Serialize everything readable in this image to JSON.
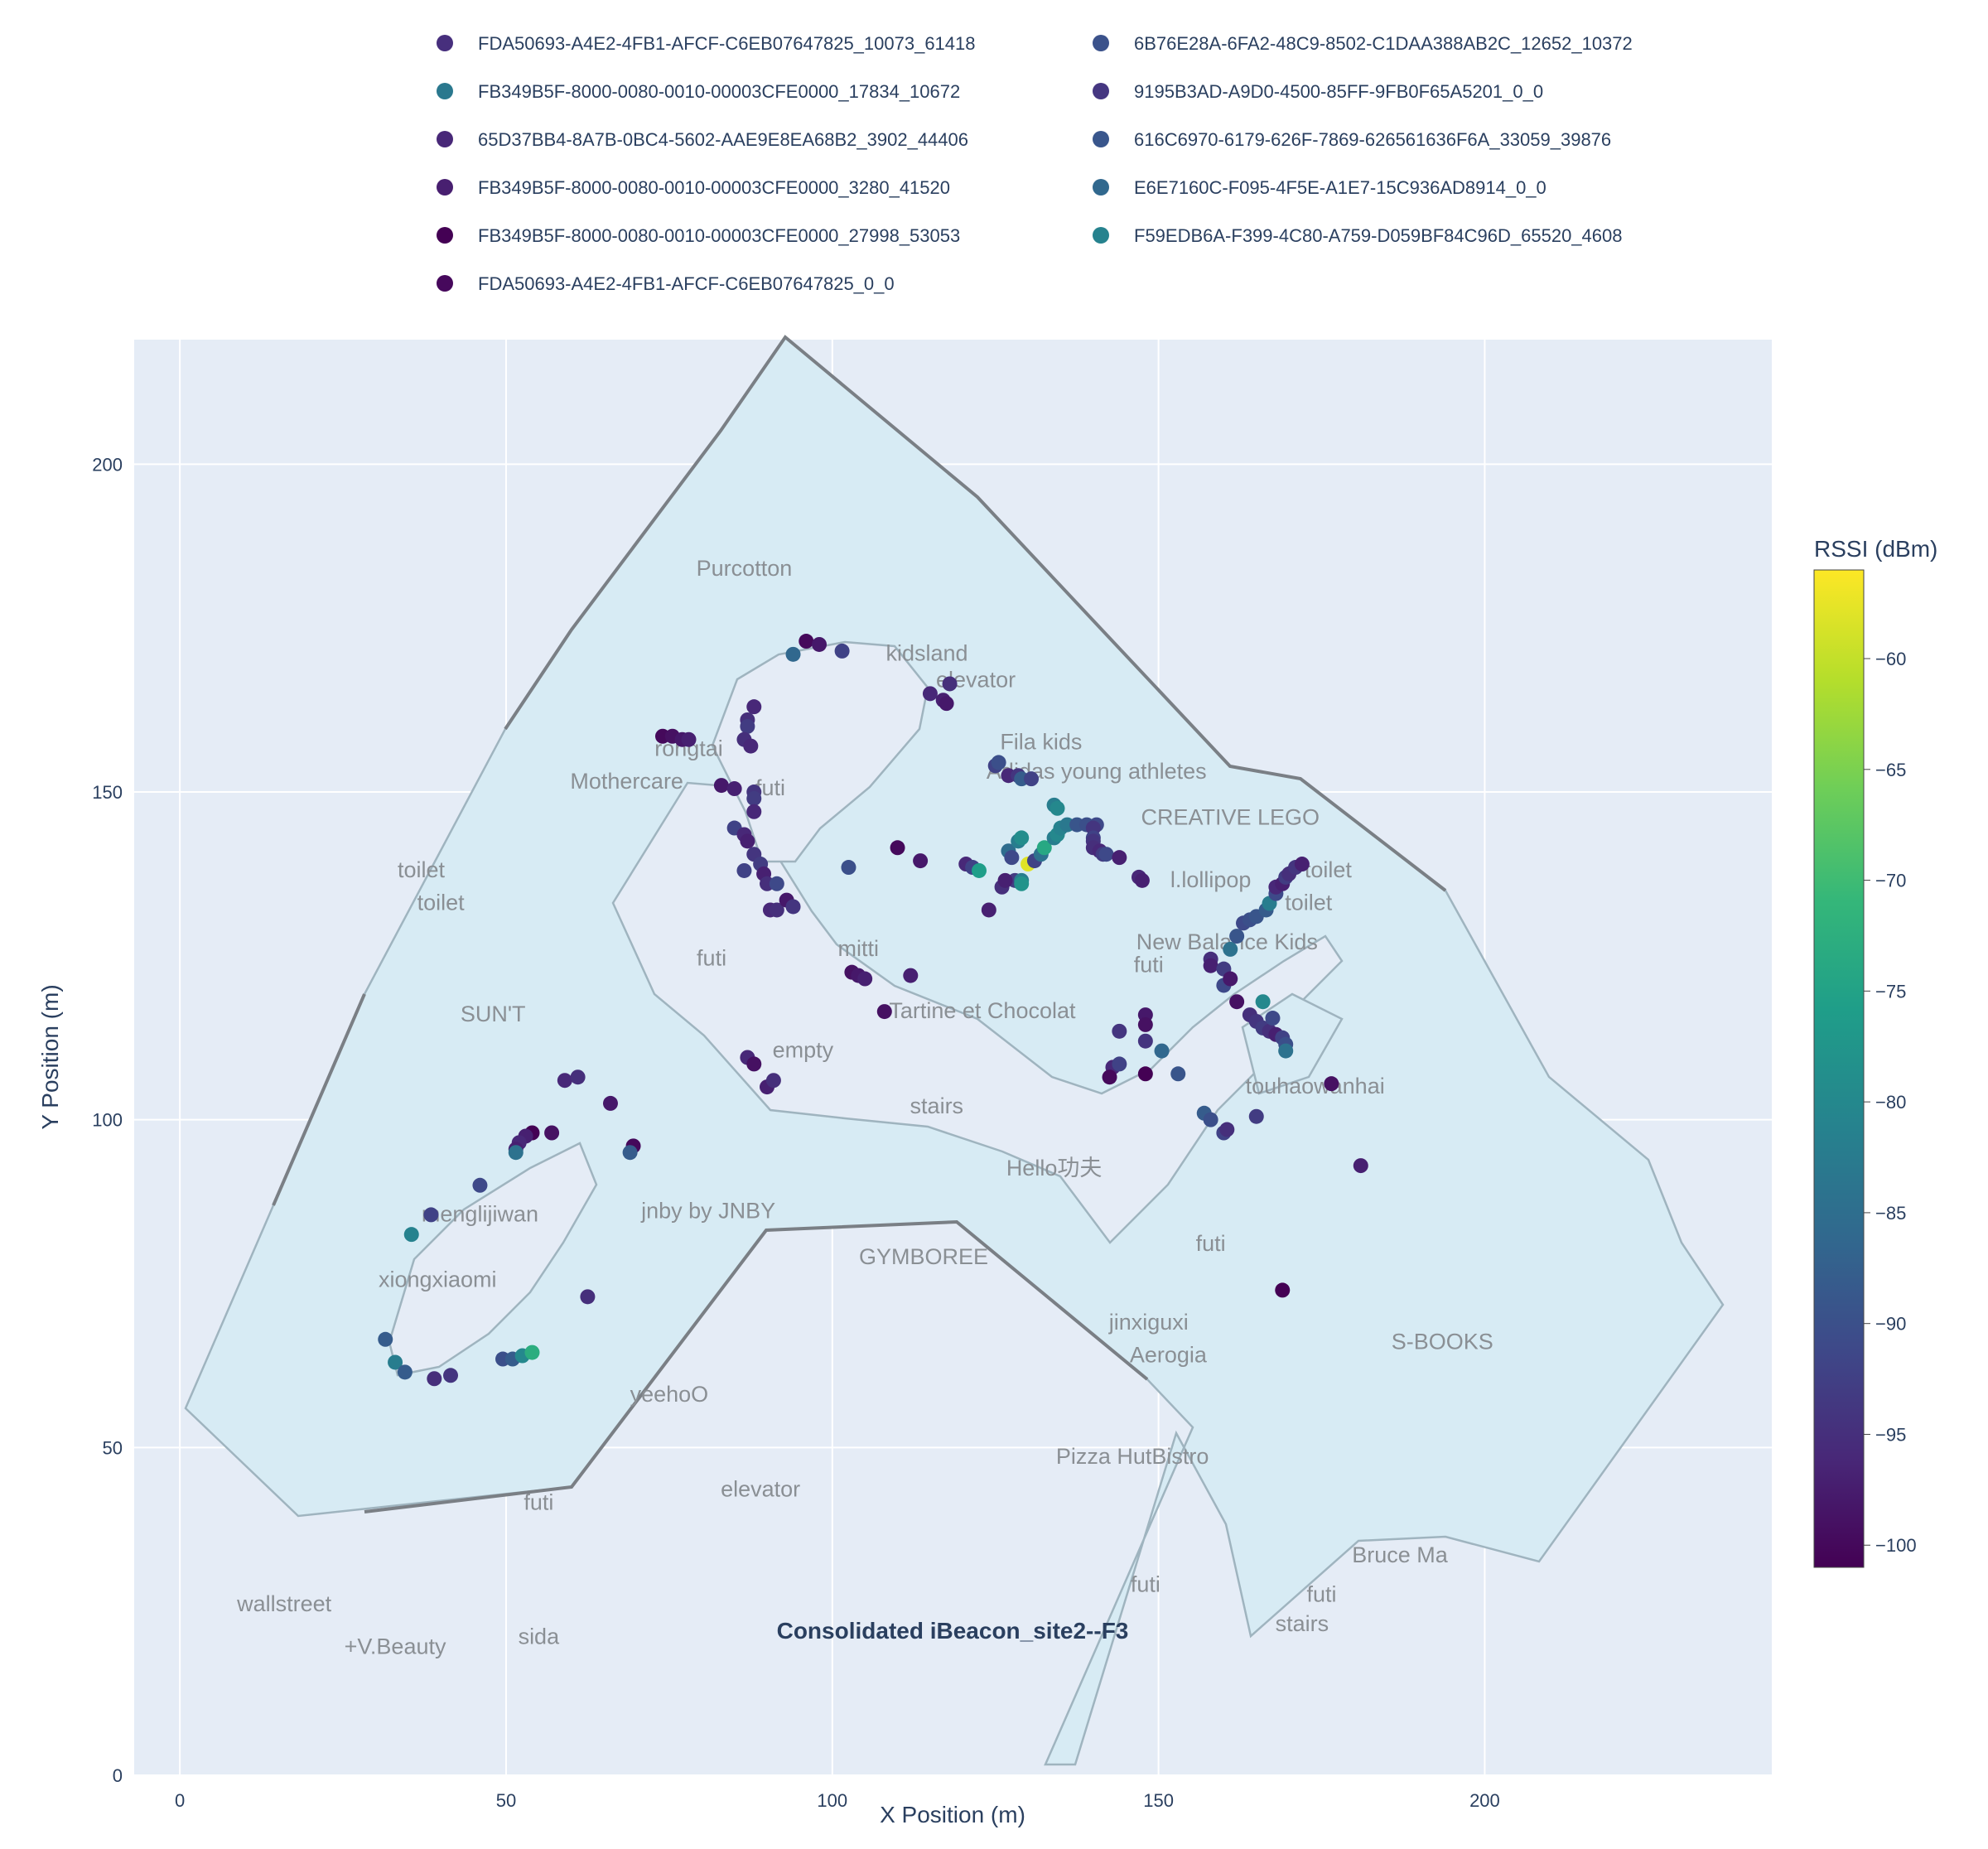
{
  "chart_data": {
    "type": "scatter",
    "xlabel": "X Position (m)",
    "ylabel": "Y Position (m)",
    "xlim": [
      -7,
      244
    ],
    "ylim": [
      0,
      219
    ],
    "xticks": [
      0,
      50,
      100,
      150,
      200
    ],
    "yticks": [
      0,
      50,
      100,
      150,
      200
    ],
    "grid": true,
    "legend_position": "top",
    "colorbar": {
      "title": "RSSI (dBm)",
      "range": [
        -101,
        -56
      ],
      "ticks": [
        -100,
        -95,
        -90,
        -85,
        -80,
        -75,
        -70,
        -65,
        -60
      ],
      "colorscale": "Viridis"
    },
    "series": [
      {
        "name": "FDA50693-A4E2-4FB1-AFCF-C6EB07647825_10073_61418",
        "color": "#472f7d"
      },
      {
        "name": "6B76E28A-6FA2-48C9-8502-C1DAA388AB2C_12652_10372",
        "color": "#3b528b"
      },
      {
        "name": "FB349B5F-8000-0080-0010-00003CFE0000_17834_10672",
        "color": "#2a788e"
      },
      {
        "name": "9195B3AD-A9D0-4500-85FF-9FB0F65A5201_0_0",
        "color": "#453781"
      },
      {
        "name": "65D37BB4-8A7B-0BC4-5602-AAE9E8EA68B2_3902_44406",
        "color": "#482878"
      },
      {
        "name": "616C6970-6179-626F-7869-626561636F6A_33059_39876",
        "color": "#39568c"
      },
      {
        "name": "FB349B5F-8000-0080-0010-00003CFE0000_3280_41520",
        "color": "#481f70"
      },
      {
        "name": "E6E7160C-F095-4F5E-A1E7-15C936AD8914_0_0",
        "color": "#31688e"
      },
      {
        "name": "FB349B5F-8000-0080-0010-00003CFE0000_27998_53053",
        "color": "#440154"
      },
      {
        "name": "F59EDB6A-F399-4C80-A759-D059BF84C96D_65520_4608",
        "color": "#26828e"
      },
      {
        "name": "FDA50693-A4E2-4FB1-AFCF-C6EB07647825_0_0",
        "color": "#46085c"
      }
    ],
    "points": [
      [
        96,
        173,
        -100
      ],
      [
        98,
        172.5,
        -98
      ],
      [
        101.5,
        171.5,
        -92
      ],
      [
        94,
        171,
        -86
      ],
      [
        115,
        165,
        -96
      ],
      [
        118,
        166.5,
        -95
      ],
      [
        117,
        164,
        -97
      ],
      [
        117.5,
        163.5,
        -98
      ],
      [
        88,
        163,
        -96
      ],
      [
        87,
        161,
        -95
      ],
      [
        87,
        160,
        -93
      ],
      [
        86.5,
        158,
        -95
      ],
      [
        87.5,
        157,
        -96
      ],
      [
        74,
        158.5,
        -100
      ],
      [
        75.5,
        158.5,
        -99
      ],
      [
        77,
        158,
        -98
      ],
      [
        78,
        158,
        -97
      ],
      [
        83,
        151,
        -98
      ],
      [
        85,
        150.5,
        -97
      ],
      [
        88,
        150,
        -94
      ],
      [
        88,
        149,
        -93
      ],
      [
        88,
        147,
        -96
      ],
      [
        85,
        144.5,
        -92
      ],
      [
        86.5,
        143.5,
        -96
      ],
      [
        87,
        142.5,
        -97
      ],
      [
        86.5,
        138,
        -92
      ],
      [
        88,
        140.5,
        -94
      ],
      [
        89,
        139,
        -93
      ],
      [
        89.5,
        137.5,
        -97
      ],
      [
        90,
        136,
        -95
      ],
      [
        91.5,
        136,
        -91
      ],
      [
        90.5,
        132,
        -96
      ],
      [
        91.5,
        132,
        -95
      ],
      [
        93,
        133.5,
        -98
      ],
      [
        94,
        132.5,
        -94
      ],
      [
        102.5,
        138.5,
        -90
      ],
      [
        110,
        141.5,
        -100
      ],
      [
        113.5,
        139.5,
        -98
      ],
      [
        120.5,
        139,
        -96
      ],
      [
        121.5,
        138.5,
        -92
      ],
      [
        122.5,
        138,
        -76
      ],
      [
        124,
        132,
        -97
      ],
      [
        125,
        154,
        -92
      ],
      [
        125.5,
        154.5,
        -90
      ],
      [
        127,
        152.5,
        -96
      ],
      [
        128.5,
        152.5,
        -94
      ],
      [
        129,
        152,
        -88
      ],
      [
        130.5,
        152,
        -92
      ],
      [
        134,
        148,
        -82
      ],
      [
        134.5,
        147.5,
        -80
      ],
      [
        127,
        141,
        -85
      ],
      [
        127.5,
        140,
        -91
      ],
      [
        128.5,
        142.5,
        -82
      ],
      [
        129,
        143,
        -79
      ],
      [
        128,
        136.5,
        -93
      ],
      [
        126,
        135.5,
        -95
      ],
      [
        126.5,
        136.5,
        -97
      ],
      [
        129,
        136.5,
        -82
      ],
      [
        129,
        136,
        -78
      ],
      [
        130,
        139,
        -58
      ],
      [
        131,
        139.5,
        -92
      ],
      [
        132,
        140.5,
        -84
      ],
      [
        132.5,
        141.5,
        -74
      ],
      [
        134,
        143,
        -82
      ],
      [
        134.5,
        143.5,
        -80
      ],
      [
        135,
        144.5,
        -81
      ],
      [
        136,
        145,
        -83
      ],
      [
        137.5,
        145,
        -89
      ],
      [
        139,
        145,
        -90
      ],
      [
        140.5,
        145,
        -91
      ],
      [
        140,
        144.5,
        -94
      ],
      [
        140,
        143,
        -92
      ],
      [
        140,
        142.5,
        -94
      ],
      [
        140,
        141.5,
        -95
      ],
      [
        141,
        141,
        -96
      ],
      [
        141.5,
        140.5,
        -93
      ],
      [
        142,
        140.5,
        -91
      ],
      [
        144,
        140,
        -97
      ],
      [
        147,
        137,
        -96
      ],
      [
        147.5,
        136.5,
        -97
      ],
      [
        158,
        124.5,
        -95
      ],
      [
        158,
        123.5,
        -97
      ],
      [
        160,
        123,
        -93
      ],
      [
        160,
        120.5,
        -91
      ],
      [
        161,
        121.5,
        -98
      ],
      [
        161,
        126,
        -84
      ],
      [
        162,
        128,
        -89
      ],
      [
        163,
        130,
        -91
      ],
      [
        164,
        130.5,
        -90
      ],
      [
        165,
        131,
        -89
      ],
      [
        166.5,
        132,
        -88
      ],
      [
        167,
        133,
        -82
      ],
      [
        168,
        134.5,
        -91
      ],
      [
        168,
        135.5,
        -96
      ],
      [
        169,
        136,
        -97
      ],
      [
        169.5,
        137,
        -93
      ],
      [
        170,
        137.5,
        -95
      ],
      [
        171,
        138.5,
        -94
      ],
      [
        172,
        139,
        -97
      ],
      [
        162,
        118,
        -99
      ],
      [
        164,
        116,
        -95
      ],
      [
        165,
        115,
        -94
      ],
      [
        166,
        114,
        -93
      ],
      [
        166,
        118,
        -80
      ],
      [
        167,
        113.5,
        -95
      ],
      [
        167.5,
        115.5,
        -91
      ],
      [
        168,
        113,
        -97
      ],
      [
        169,
        112.5,
        -92
      ],
      [
        169.5,
        111.5,
        -90
      ],
      [
        169.5,
        110.5,
        -84
      ],
      [
        148,
        116,
        -98
      ],
      [
        148,
        114.5,
        -99
      ],
      [
        148,
        112,
        -94
      ],
      [
        144,
        113.5,
        -94
      ],
      [
        143,
        108,
        -96
      ],
      [
        144,
        108.5,
        -92
      ],
      [
        142.5,
        106.5,
        -100
      ],
      [
        148,
        107,
        -101
      ],
      [
        150.5,
        110.5,
        -86
      ],
      [
        153,
        107,
        -89
      ],
      [
        157,
        101,
        -88
      ],
      [
        158,
        100,
        -90
      ],
      [
        160,
        98,
        -92
      ],
      [
        160.5,
        98.5,
        -95
      ],
      [
        165,
        100.5,
        -93
      ],
      [
        176.5,
        105.5,
        -99
      ],
      [
        181,
        93,
        -97
      ],
      [
        169,
        74,
        -101
      ],
      [
        103,
        122.5,
        -99
      ],
      [
        104,
        122,
        -98
      ],
      [
        105,
        121.5,
        -97
      ],
      [
        112,
        122,
        -97
      ],
      [
        108,
        116.5,
        -99
      ],
      [
        87,
        109.5,
        -96
      ],
      [
        88,
        108.5,
        -99
      ],
      [
        90,
        105,
        -97
      ],
      [
        91,
        106,
        -95
      ],
      [
        59,
        106,
        -96
      ],
      [
        61,
        106.5,
        -95
      ],
      [
        66,
        102.5,
        -98
      ],
      [
        69.5,
        96,
        -100
      ],
      [
        69,
        95,
        -88
      ],
      [
        57,
        98,
        -99
      ],
      [
        54,
        98,
        -101
      ],
      [
        53,
        97.5,
        -97
      ],
      [
        52,
        96.5,
        -96
      ],
      [
        51.5,
        95.5,
        -97
      ],
      [
        51.5,
        95,
        -84
      ],
      [
        46,
        90,
        -91
      ],
      [
        38.5,
        85.5,
        -92
      ],
      [
        35.5,
        82.5,
        -81
      ],
      [
        62.5,
        73,
        -95
      ],
      [
        31.5,
        66.5,
        -88
      ],
      [
        33,
        63,
        -82
      ],
      [
        34.5,
        61.5,
        -88
      ],
      [
        39,
        60.5,
        -95
      ],
      [
        41.5,
        61,
        -94
      ],
      [
        49.5,
        63.5,
        -90
      ],
      [
        51,
        63.5,
        -88
      ],
      [
        52.5,
        64,
        -80
      ],
      [
        54,
        64.5,
        -73
      ]
    ],
    "labels": [
      [
        86.5,
        183,
        "Purcotton"
      ],
      [
        114.5,
        170,
        "kidsland"
      ],
      [
        122,
        166,
        "elevator"
      ],
      [
        132,
        156.5,
        "Fila kids"
      ],
      [
        140.5,
        152,
        "Adidas young athletes"
      ],
      [
        78,
        155.5,
        "rongtai"
      ],
      [
        90.5,
        149.5,
        "futi"
      ],
      [
        68.5,
        150.5,
        "Mothercare"
      ],
      [
        161,
        145,
        "CREATIVE LEGO"
      ],
      [
        37,
        137,
        "toilet"
      ],
      [
        176,
        137,
        "toilet"
      ],
      [
        40,
        132,
        "toilet"
      ],
      [
        158,
        135.5,
        "l.lollipop"
      ],
      [
        173,
        132,
        "toilet"
      ],
      [
        160.5,
        126,
        "New Balance Kids"
      ],
      [
        81.5,
        123.5,
        "futi"
      ],
      [
        104,
        125,
        "mitti"
      ],
      [
        148.5,
        122.5,
        "futi"
      ],
      [
        123,
        115.5,
        "Tartine et Chocolat"
      ],
      [
        48,
        115,
        "SUN'T"
      ],
      [
        95.5,
        109.5,
        "empty"
      ],
      [
        174,
        104,
        "touhaowanhai"
      ],
      [
        116,
        101,
        "stairs"
      ],
      [
        134,
        91.5,
        "Hello功夫"
      ],
      [
        46,
        84.5,
        "menglijiwan"
      ],
      [
        81,
        85,
        "jnby by JNBY"
      ],
      [
        158,
        80,
        "futi"
      ],
      [
        114,
        78,
        "GYMBOREE"
      ],
      [
        39.5,
        74.5,
        "xiongxiaomi"
      ],
      [
        148.5,
        68,
        "jinxiguxi"
      ],
      [
        193.5,
        65,
        "S-BOOKS"
      ],
      [
        151.5,
        63,
        "Aerogia"
      ],
      [
        75,
        57,
        "yeehoO"
      ],
      [
        146,
        47.5,
        "Pizza HutBistro"
      ],
      [
        89,
        42.5,
        "elevator"
      ],
      [
        55,
        40.5,
        "futi"
      ],
      [
        187,
        32.5,
        "Bruce Ma"
      ],
      [
        148,
        28,
        "futi"
      ],
      [
        16,
        25,
        "wallstreet"
      ],
      [
        175,
        26.5,
        "futi"
      ],
      [
        172,
        22,
        "stairs"
      ],
      [
        33,
        18.5,
        "+V.Beauty"
      ],
      [
        55,
        20,
        "sida"
      ]
    ]
  },
  "annotation": "Consolidated iBeacon_site2--F3"
}
